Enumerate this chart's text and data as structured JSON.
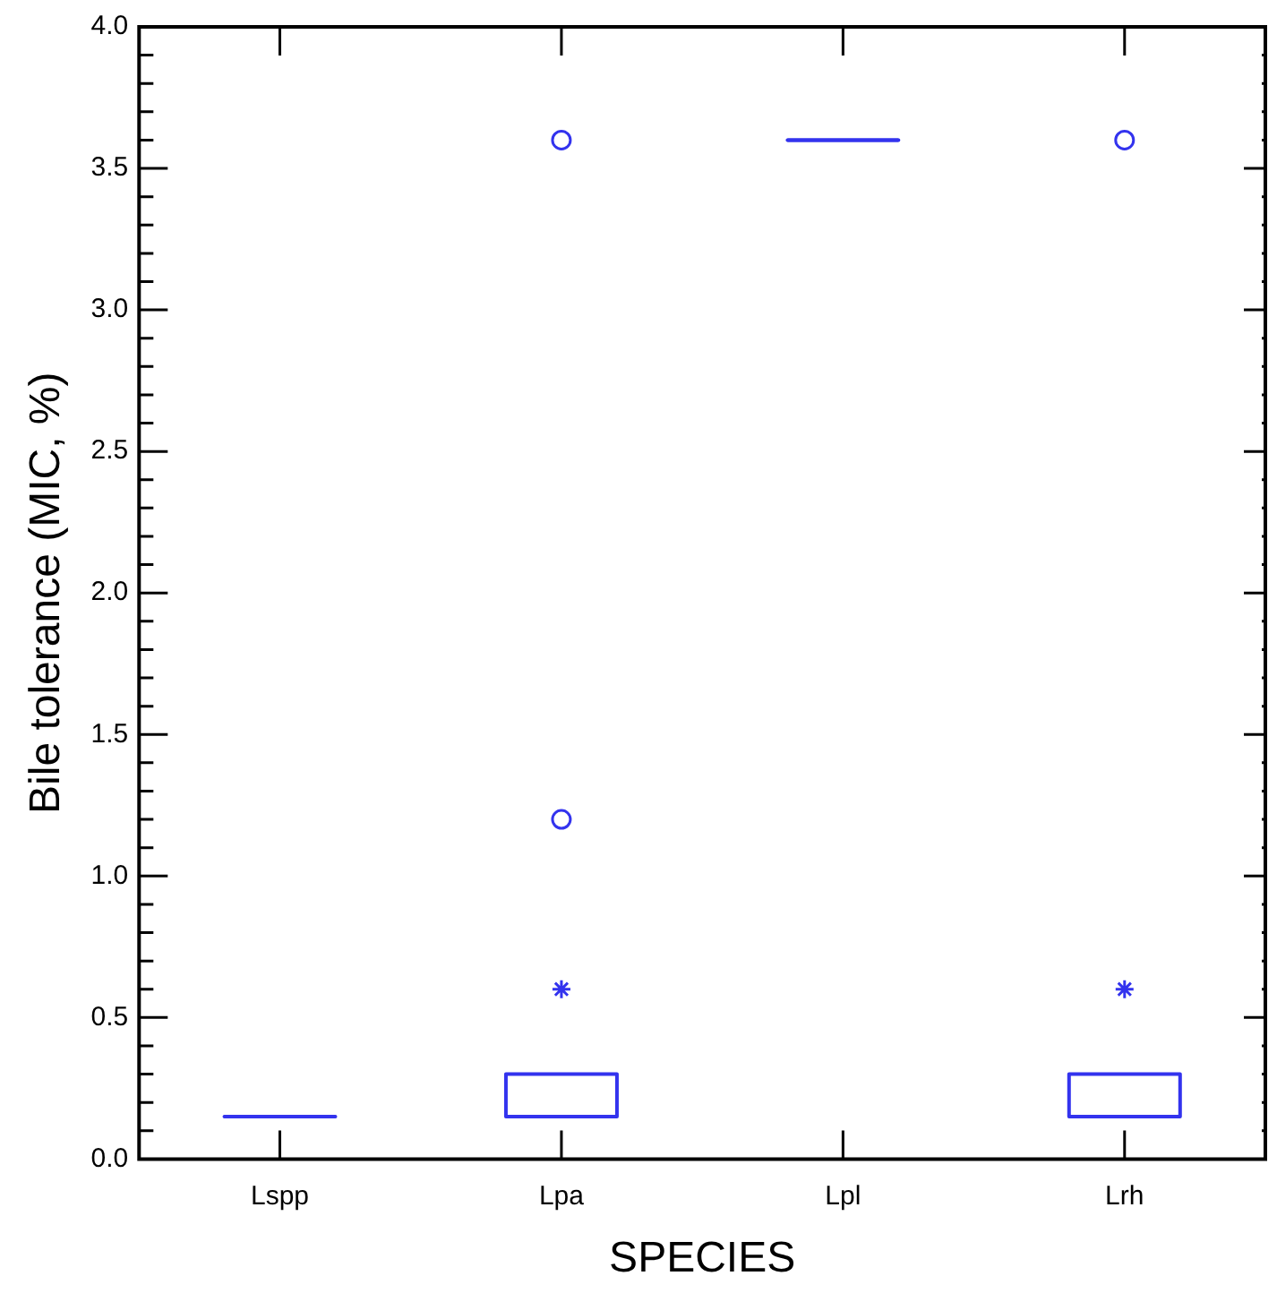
{
  "chart_data": {
    "type": "box",
    "xlabel": "SPECIES",
    "ylabel": "Bile tolerance (MIC, %)",
    "categories": [
      "Lspp",
      "Lpa",
      "Lpl",
      "Lrh"
    ],
    "color": "#3333ee",
    "boxes": [
      {
        "low": 0.15,
        "q1": 0.15,
        "median": 0.15,
        "q3": 0.15,
        "high": 0.15
      },
      {
        "low": 0.15,
        "q1": 0.15,
        "median": 0.15,
        "q3": 0.3,
        "high": 0.3,
        "outliers": [
          0.6,
          1.2,
          3.6
        ]
      },
      {
        "low": 3.6,
        "q1": 3.6,
        "median": 3.6,
        "q3": 3.6,
        "high": 3.6
      },
      {
        "low": 0.15,
        "q1": 0.15,
        "median": 0.15,
        "q3": 0.3,
        "high": 0.3,
        "outliers": [
          0.6,
          3.6
        ]
      }
    ],
    "ylim": [
      0,
      4
    ],
    "yticks": [
      {
        "value": 0,
        "label": "0.0"
      },
      {
        "value": 0.1,
        "label": null
      },
      {
        "value": 0.2,
        "label": null
      },
      {
        "value": 0.3,
        "label": null
      },
      {
        "value": 0.4,
        "label": null
      },
      0.5,
      {
        "value": 0.6,
        "label": null
      },
      {
        "value": 0.7,
        "label": null
      },
      {
        "value": 0.8,
        "label": null
      },
      {
        "value": 0.9,
        "label": null
      },
      {
        "value": 1,
        "label": "1.0"
      },
      {
        "value": 1.1,
        "label": null
      },
      {
        "value": 1.2,
        "label": null
      },
      {
        "value": 1.3,
        "label": null
      },
      {
        "value": 1.4,
        "label": null
      },
      1.5,
      {
        "value": 1.6,
        "label": null
      },
      {
        "value": 1.7,
        "label": null
      },
      {
        "value": 1.8,
        "label": null
      },
      {
        "value": 1.9,
        "label": null
      },
      {
        "value": 2,
        "label": "2.0"
      },
      {
        "value": 2.1,
        "label": null
      },
      {
        "value": 2.2,
        "label": null
      },
      {
        "value": 2.3,
        "label": null
      },
      {
        "value": 2.4,
        "label": null
      },
      2.5,
      {
        "value": 2.6,
        "label": null
      },
      {
        "value": 2.7,
        "label": null
      },
      {
        "value": 2.8,
        "label": null
      },
      {
        "value": 2.9,
        "label": null
      },
      {
        "value": 3,
        "label": "3.0"
      },
      {
        "value": 3.1,
        "label": null
      },
      {
        "value": 3.2,
        "label": null
      },
      {
        "value": 3.3,
        "label": null
      },
      {
        "value": 3.4,
        "label": null
      },
      3.5,
      {
        "value": 3.6,
        "label": null
      },
      {
        "value": 3.7,
        "label": null
      },
      {
        "value": 3.8,
        "label": null
      },
      {
        "value": 3.9,
        "label": null
      },
      {
        "value": 4,
        "label": "4.0"
      }
    ],
    "grid": false,
    "legend": false
  }
}
